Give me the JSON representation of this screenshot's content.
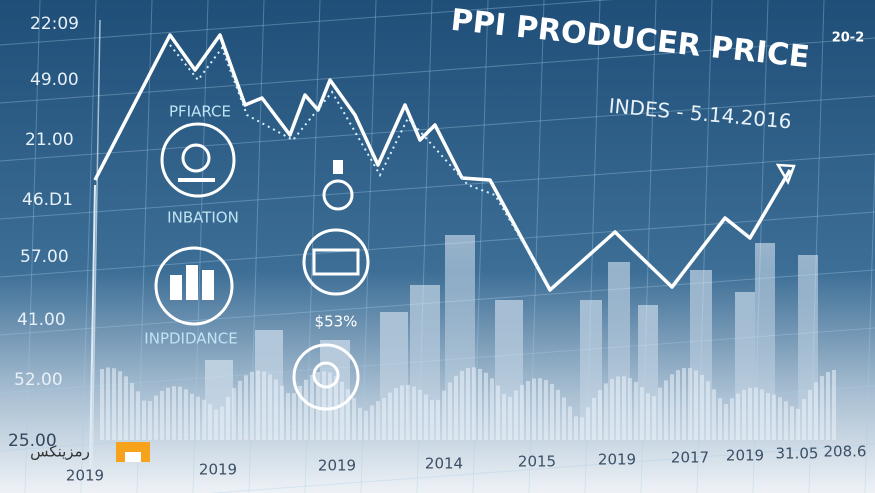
{
  "header": {
    "title": "PPI PRODUCER PRICE",
    "subtitle": "INDES - 5.14.2016",
    "corner": "20-2"
  },
  "y_labels": [
    "22:09",
    "49.00",
    "21.00",
    "46.D1",
    "57.00",
    "41.00",
    "52.00",
    "25.00"
  ],
  "x_labels": [
    "2019",
    "2019",
    "2019",
    "2014",
    "2015",
    "2019",
    "2017",
    "2019",
    "31.05",
    "208.6"
  ],
  "icons": [
    {
      "label": "PFIARCE"
    },
    {
      "label": "INBATION"
    },
    {
      "label": "INPDIDANCE"
    },
    {
      "label": "$53%"
    }
  ],
  "watermark": "رمزینکس"
}
